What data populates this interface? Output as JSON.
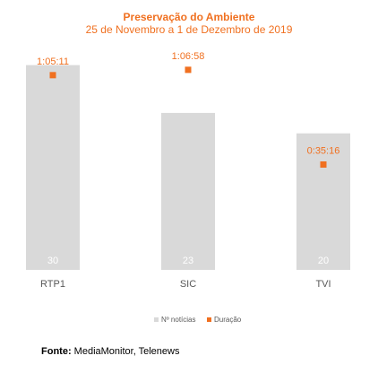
{
  "chart_data": {
    "type": "bar",
    "title": "Preservação do Ambiente",
    "subtitle": "25 de Novembro a 1 de Dezembro de 2019",
    "categories": [
      "RTP1",
      "SIC",
      "TVI"
    ],
    "series": [
      {
        "name": "Nº notícias",
        "kind": "bar",
        "color": "#D9D9D9",
        "values": [
          30,
          23,
          20
        ]
      },
      {
        "name": "Duração",
        "kind": "marker",
        "color": "#F07020",
        "values": [
          "1:05:11",
          "1:06:58",
          "0:35:16"
        ],
        "values_seconds": [
          3911,
          4018,
          2116
        ]
      }
    ],
    "bar_value_ylim": [
      0,
      31
    ],
    "duration_ylim_seconds": [
      0,
      4250
    ],
    "grid": false,
    "legend_position": "bottom"
  },
  "source": {
    "label": "Fonte:",
    "text": "MediaMonitor, Telenews"
  }
}
